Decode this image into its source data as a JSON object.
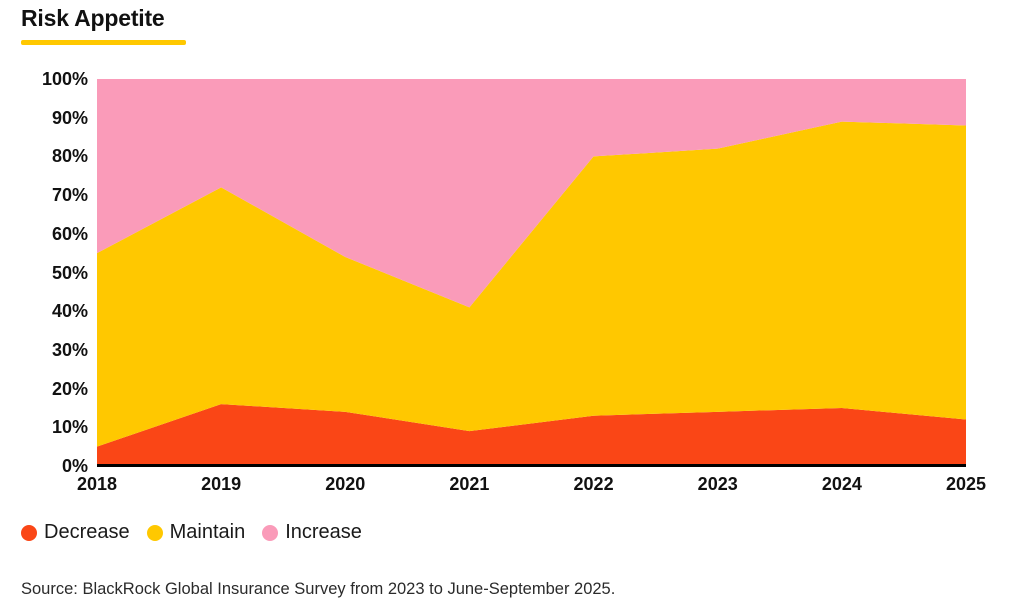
{
  "page": {
    "title": "Risk Appetite",
    "source": "Source: BlackRock Global Insurance Survey from 2023 to June-September 2025."
  },
  "colors": {
    "decrease": "#FA4616",
    "maintain": "#FFC800",
    "increase": "#FA9BB9",
    "title_underline": "#FFC800",
    "axis_line": "#000000",
    "text": "#111111"
  },
  "legend": {
    "items": [
      {
        "label": "Decrease",
        "color_key": "decrease"
      },
      {
        "label": "Maintain",
        "color_key": "maintain"
      },
      {
        "label": "Increase",
        "color_key": "increase"
      }
    ]
  },
  "chart_data": {
    "type": "area",
    "stacked": true,
    "title": "Risk Appetite",
    "categories": [
      "2018",
      "2019",
      "2020",
      "2021",
      "2022",
      "2023",
      "2024",
      "2025"
    ],
    "series": [
      {
        "name": "Decrease",
        "color_key": "decrease",
        "values": [
          5,
          16,
          14,
          9,
          13,
          14,
          15,
          12
        ]
      },
      {
        "name": "Maintain",
        "color_key": "maintain",
        "values": [
          50,
          56,
          40,
          32,
          67,
          68,
          74,
          76
        ]
      },
      {
        "name": "Increase",
        "color_key": "increase",
        "values": [
          45,
          28,
          46,
          59,
          20,
          18,
          11,
          12
        ]
      }
    ],
    "xlabel": "",
    "ylabel": "",
    "ylim": [
      0,
      100
    ],
    "y_ticks": [
      {
        "value": 100,
        "label": "100%"
      },
      {
        "value": 90,
        "label": "90%"
      },
      {
        "value": 80,
        "label": "80%"
      },
      {
        "value": 70,
        "label": "70%"
      },
      {
        "value": 60,
        "label": "60%"
      },
      {
        "value": 50,
        "label": "50%"
      },
      {
        "value": 40,
        "label": "40%"
      },
      {
        "value": 30,
        "label": "30%"
      },
      {
        "value": 20,
        "label": "20%"
      },
      {
        "value": 10,
        "label": "10%"
      },
      {
        "value": 0,
        "label": "0%"
      }
    ],
    "grid": false,
    "legend_position": "bottom"
  }
}
